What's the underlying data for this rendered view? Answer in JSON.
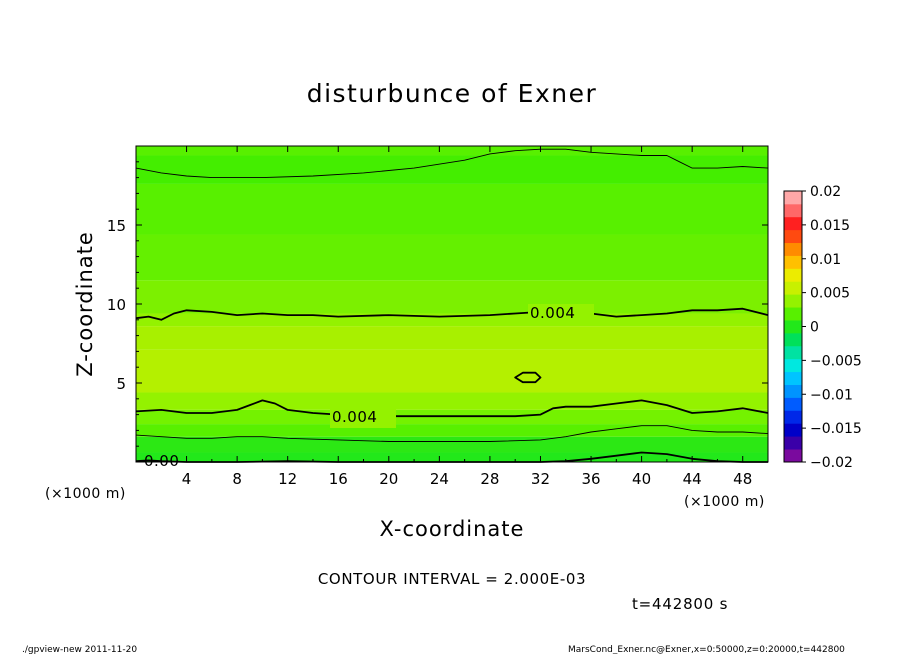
{
  "chart_data": {
    "type": "heatmap",
    "title": "disturbunce of Exner",
    "xlabel": "X-coordinate",
    "ylabel": "Z-coordinate",
    "x_unit_label": "(×1000 m)",
    "y_unit_label": "(×1000 m)",
    "xlim": [
      0,
      50
    ],
    "ylim": [
      0,
      20
    ],
    "x_ticks": [
      "4",
      "8",
      "12",
      "16",
      "20",
      "24",
      "28",
      "32",
      "36",
      "40",
      "44",
      "48"
    ],
    "x_tick_values": [
      4,
      8,
      12,
      16,
      20,
      24,
      28,
      32,
      36,
      40,
      44,
      48
    ],
    "y_ticks": [
      "5",
      "10",
      "15"
    ],
    "y_tick_values": [
      5,
      10,
      15
    ],
    "colorbar": {
      "labels": [
        "0.02",
        "0.015",
        "0.01",
        "0.005",
        "0",
        "−0.005",
        "−0.01",
        "−0.015",
        "−0.02"
      ],
      "levels": [
        -0.02,
        -0.018,
        -0.016,
        -0.014,
        -0.012,
        -0.01,
        -0.008,
        -0.006,
        -0.004,
        -0.002,
        0,
        0.002,
        0.004,
        0.006,
        0.008,
        0.01,
        0.012,
        0.014,
        0.016,
        0.018,
        0.02
      ],
      "colors": [
        "#7a0a9e",
        "#3a00a8",
        "#0000c8",
        "#0028e8",
        "#005cff",
        "#0094ff",
        "#00c4ff",
        "#00e8e0",
        "#00e2a2",
        "#00e05a",
        "#22e81a",
        "#58f000",
        "#94f200",
        "#c8f000",
        "#ecec00",
        "#ffc000",
        "#ff8c00",
        "#ff4a10",
        "#ff2020",
        "#ff6868",
        "#ffa8a8"
      ]
    },
    "contour_labels": [
      "0.004",
      "0.004",
      "0.00"
    ],
    "bands": [
      {
        "z_bottom": 0.0,
        "z_top": 0.6,
        "color": "#22e81a"
      },
      {
        "z_bottom": 0.6,
        "z_top": 1.6,
        "color": "#2ce814"
      },
      {
        "z_bottom": 1.6,
        "z_top": 2.4,
        "color": "#58f000"
      },
      {
        "z_bottom": 2.4,
        "z_top": 3.3,
        "color": "#74f200"
      },
      {
        "z_bottom": 3.3,
        "z_top": 4.4,
        "color": "#94f200"
      },
      {
        "z_bottom": 4.4,
        "z_top": 7.1,
        "color": "#b4f000"
      },
      {
        "z_bottom": 7.1,
        "z_top": 8.6,
        "color": "#a8f000"
      },
      {
        "z_bottom": 8.6,
        "z_top": 9.4,
        "color": "#94f200"
      },
      {
        "z_bottom": 9.4,
        "z_top": 11.5,
        "color": "#7cf000"
      },
      {
        "z_bottom": 11.5,
        "z_top": 14.4,
        "color": "#64f000"
      },
      {
        "z_bottom": 14.4,
        "z_top": 17.6,
        "color": "#58f000"
      },
      {
        "z_bottom": 17.6,
        "z_top": 19.4,
        "color": "#44ee00"
      },
      {
        "z_bottom": 19.4,
        "z_top": 20.0,
        "color": "#58f000"
      }
    ],
    "contours": [
      {
        "level": 0.004,
        "weight": "heavy",
        "x": [
          0,
          1,
          2,
          3,
          4,
          6,
          8,
          10,
          12,
          14,
          16,
          20,
          24,
          28,
          30,
          32,
          34,
          36,
          38,
          40,
          42,
          44,
          46,
          48,
          50
        ],
        "z": [
          9.1,
          9.2,
          9.0,
          9.4,
          9.6,
          9.5,
          9.3,
          9.4,
          9.3,
          9.3,
          9.2,
          9.3,
          9.2,
          9.3,
          9.4,
          9.5,
          9.5,
          9.4,
          9.2,
          9.3,
          9.4,
          9.6,
          9.6,
          9.7,
          9.3
        ]
      },
      {
        "level": 0.004,
        "weight": "heavy",
        "x": [
          0,
          2,
          4,
          6,
          8,
          9,
          10,
          11,
          12,
          14,
          16,
          20,
          24,
          28,
          30,
          32,
          33,
          34,
          36,
          38,
          40,
          42,
          44,
          46,
          48,
          50
        ],
        "z": [
          3.2,
          3.3,
          3.1,
          3.1,
          3.3,
          3.6,
          3.9,
          3.7,
          3.3,
          3.1,
          3.0,
          2.9,
          2.9,
          2.9,
          2.9,
          3.0,
          3.4,
          3.5,
          3.5,
          3.7,
          3.9,
          3.6,
          3.1,
          3.2,
          3.4,
          3.1
        ]
      },
      {
        "level": 0.004,
        "weight": "heavy",
        "closed": true,
        "x": [
          30.0,
          30.6,
          31.6,
          32.0,
          31.6,
          30.6,
          30.0
        ],
        "z": [
          5.35,
          5.65,
          5.65,
          5.35,
          5.05,
          5.05,
          5.35
        ]
      },
      {
        "level": 0.002,
        "weight": "thin",
        "x": [
          0,
          2,
          4,
          6,
          10,
          14,
          18,
          22,
          26,
          28,
          30,
          32,
          34,
          36,
          38,
          40,
          42,
          43,
          44,
          46,
          48,
          50
        ],
        "z": [
          18.6,
          18.3,
          18.1,
          18.0,
          18.0,
          18.1,
          18.3,
          18.6,
          19.1,
          19.5,
          19.7,
          19.8,
          19.8,
          19.6,
          19.5,
          19.4,
          19.4,
          19.0,
          18.6,
          18.6,
          18.7,
          18.6
        ]
      },
      {
        "level": 0.002,
        "weight": "thin",
        "x": [
          0,
          2,
          4,
          6,
          8,
          10,
          12,
          16,
          20,
          24,
          28,
          32,
          34,
          36,
          38,
          40,
          42,
          44,
          46,
          48,
          50
        ],
        "z": [
          1.7,
          1.6,
          1.5,
          1.5,
          1.6,
          1.6,
          1.5,
          1.4,
          1.3,
          1.3,
          1.3,
          1.4,
          1.6,
          1.9,
          2.1,
          2.3,
          2.3,
          2.0,
          1.9,
          1.9,
          1.8
        ]
      },
      {
        "level": 0.0,
        "weight": "heavy",
        "x": [
          0,
          1,
          2,
          4,
          8,
          12,
          16,
          20,
          24,
          28,
          30,
          32,
          34,
          36,
          38,
          40,
          42,
          44,
          46,
          48,
          50
        ],
        "z": [
          0.05,
          0.1,
          0.05,
          0.0,
          0.0,
          0.05,
          0.0,
          0.0,
          0.0,
          0.0,
          0.0,
          0.0,
          0.05,
          0.2,
          0.4,
          0.6,
          0.5,
          0.2,
          0.05,
          0.0,
          0.0
        ]
      }
    ]
  },
  "footer": {
    "contour_interval": "CONTOUR INTERVAL = 2.000E-03",
    "time": "t=442800 s",
    "program": "./gpview-new   2011-11-20",
    "source": "MarsCond_Exner.nc@Exner,x=0:50000,z=0:20000,t=442800"
  }
}
